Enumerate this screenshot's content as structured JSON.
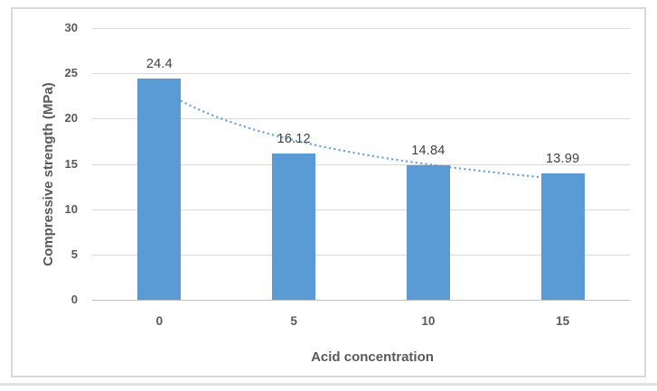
{
  "chart_data": {
    "type": "bar",
    "categories": [
      "0",
      "5",
      "10",
      "15"
    ],
    "values": [
      24.4,
      16.12,
      14.84,
      13.99
    ],
    "data_labels": [
      "24.4",
      "16.12",
      "14.84",
      "13.99"
    ],
    "title": "",
    "xlabel": "Acid concentration",
    "ylabel": "Compressive strength (MPa)",
    "ylim": [
      0,
      30
    ],
    "ytick_step": 5,
    "yticks": [
      "0",
      "5",
      "10",
      "15",
      "20",
      "25",
      "30"
    ],
    "grid": true,
    "legend": false,
    "bar_color": "#5b9bd5",
    "gridline_color": "#d9d9d9",
    "trendline": {
      "type": "power",
      "style": "dotted",
      "color": "#5b9bd5",
      "a": 23.31,
      "b": -0.4044
    }
  }
}
